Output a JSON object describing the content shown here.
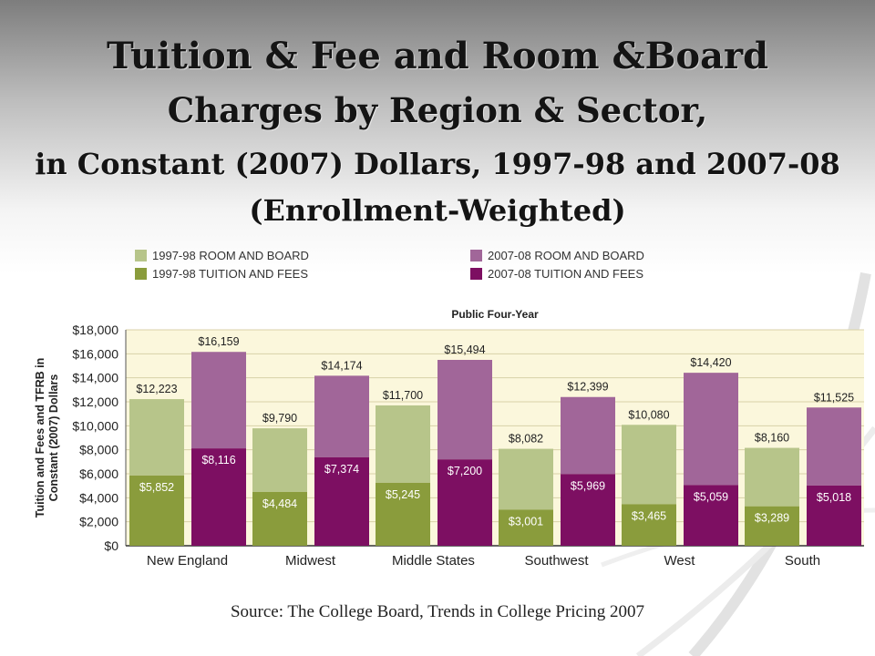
{
  "slide": {
    "title_line1": "Tuition & Fee and Room &Board",
    "title_line2": "Charges by Region & Sector,",
    "title_line3": "in Constant (2007) Dollars, 1997-98 and 2007-08",
    "title_line4": "(Enrollment-Weighted)",
    "source": "Source: The College Board, Trends in College Pricing 2007"
  },
  "colors": {
    "rb_1997": "#b7c58a",
    "tf_1997": "#8a9c3c",
    "rb_2007": "#a16699",
    "tf_2007": "#7d0f62",
    "plot_bg": "#fbf7dc",
    "grid": "#d8d2a8"
  },
  "chart_data": {
    "type": "bar",
    "title": "Public Four-Year",
    "xlabel": "",
    "ylabel": "Tuition and Fees and TFRB in Constant (2007) Dollars",
    "ylim": [
      0,
      18000
    ],
    "yticks": [
      0,
      2000,
      4000,
      6000,
      8000,
      10000,
      12000,
      14000,
      16000,
      18000
    ],
    "ytick_labels": [
      "$0",
      "$2,000",
      "$4,000",
      "$6,000",
      "$8,000",
      "$10,000",
      "$12,000",
      "$14,000",
      "$16,000",
      "$18,000"
    ],
    "categories": [
      "New England",
      "Midwest",
      "Middle States",
      "Southwest",
      "West",
      "South"
    ],
    "legend": {
      "position": "top",
      "entries": [
        "1997-98 ROOM AND BOARD",
        "1997-98 TUITION AND FEES",
        "2007-08 ROOM AND BOARD",
        "2007-08 TUITION AND FEES"
      ]
    },
    "grid": true,
    "bars": {
      "1997-98": {
        "total": [
          12223,
          9790,
          11700,
          8082,
          10080,
          8160
        ],
        "tuition_and_fees": [
          5852,
          4484,
          5245,
          3001,
          3465,
          3289
        ],
        "total_labels": [
          "$12,223",
          "$9,790",
          "$11,700",
          "$8,082",
          "$10,080",
          "$8,160"
        ],
        "tuition_labels": [
          "$5,852",
          "$4,484",
          "$5,245",
          "$3,001",
          "$3,465",
          "$3,289"
        ]
      },
      "2007-08": {
        "total": [
          16159,
          14174,
          15494,
          12399,
          14420,
          11525
        ],
        "tuition_and_fees": [
          8116,
          7374,
          7200,
          5969,
          5059,
          5018
        ],
        "total_labels": [
          "$16,159",
          "$14,174",
          "$15,494",
          "$12,399",
          "$14,420",
          "$11,525"
        ],
        "tuition_labels": [
          "$8,116",
          "$7,374",
          "$7,200",
          "$5,969",
          "$5,059",
          "$5,018"
        ]
      }
    }
  }
}
